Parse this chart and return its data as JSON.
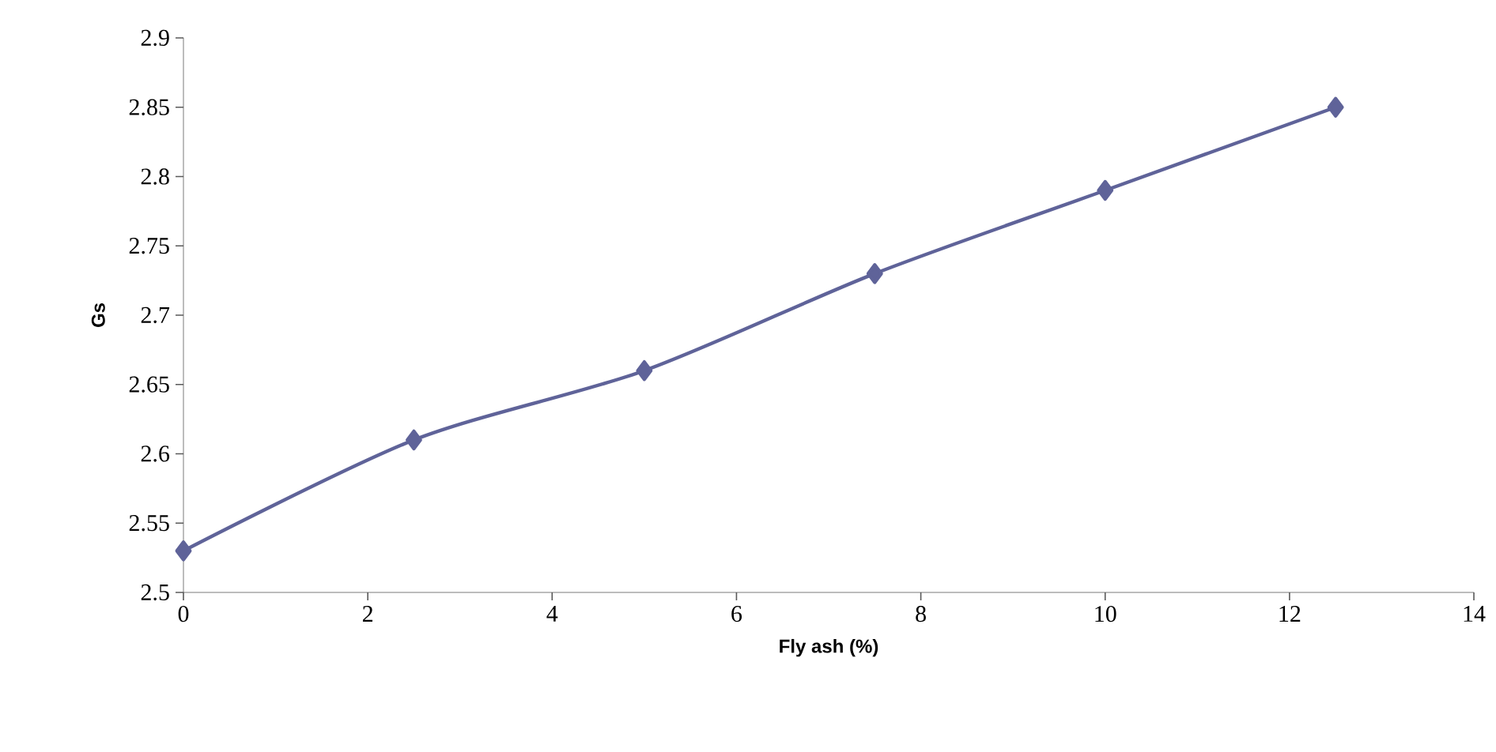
{
  "chart_data": {
    "type": "line",
    "xlabel": "Fly ash (%)",
    "ylabel": "Gs",
    "x": [
      0,
      2.5,
      5,
      7.5,
      10,
      12.5
    ],
    "series": [
      {
        "color": "#5f6399",
        "values": [
          2.53,
          2.61,
          2.66,
          2.73,
          2.79,
          2.85
        ]
      }
    ],
    "xlim": [
      0,
      14
    ],
    "xticks": [
      0,
      2,
      4,
      6,
      8,
      10,
      12,
      14
    ],
    "ylim": [
      2.5,
      2.9
    ],
    "yticks": [
      2.5,
      2.55,
      2.6,
      2.65,
      2.7,
      2.75,
      2.8,
      2.85,
      2.9
    ],
    "marker": "diamond",
    "line_style": "solid"
  }
}
